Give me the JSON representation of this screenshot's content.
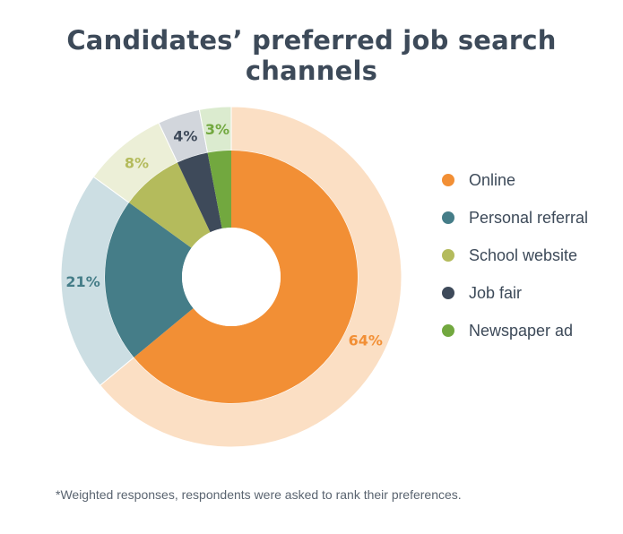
{
  "chart_data": {
    "type": "pie",
    "title": "Candidates’ preferred job search channels",
    "slices": [
      {
        "name": "Online",
        "value": 64,
        "label": "64%",
        "color": "#f28f35",
        "outer_color": "#fbdfc4"
      },
      {
        "name": "Personal referral",
        "value": 21,
        "label": "21%",
        "color": "#457d88",
        "outer_color": "#ccdee3"
      },
      {
        "name": "School website",
        "value": 8,
        "label": "8%",
        "color": "#b4bb5c",
        "outer_color": "#ecefd7"
      },
      {
        "name": "Job fair",
        "value": 4,
        "label": "4%",
        "color": "#3e4a5a",
        "outer_color": "#d2d6dc"
      },
      {
        "name": "Newspaper ad",
        "value": 3,
        "label": "3%",
        "color": "#72a83f",
        "outer_color": "#dbebcf"
      }
    ],
    "legend_position": "right",
    "footnote": "*Weighted responses, respondents were asked to rank their preferences."
  }
}
